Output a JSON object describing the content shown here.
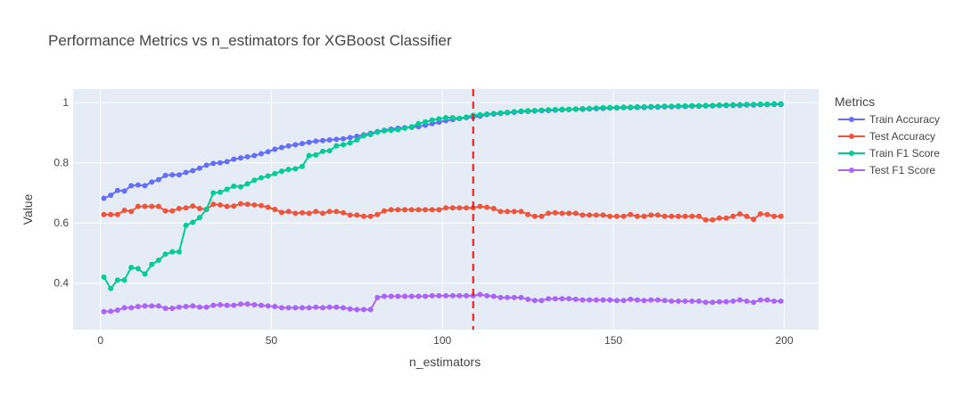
{
  "chart_data": {
    "type": "line",
    "title": "Performance Metrics vs n_estimators for XGBoost Classifier",
    "xlabel": "n_estimators",
    "ylabel": "Value",
    "xlim": [
      -8,
      210
    ],
    "ylim": [
      0.245,
      1.045
    ],
    "x_ticks": [
      0,
      50,
      100,
      150,
      200
    ],
    "x_tick_labels": [
      "0",
      "50",
      "100",
      "150",
      "200"
    ],
    "y_ticks": [
      0.4,
      0.6,
      0.8,
      1.0
    ],
    "y_tick_labels": [
      "0.4",
      "0.6",
      "0.8",
      "1"
    ],
    "grid": true,
    "legend_title": "Metrics",
    "legend_position": "right",
    "vline": {
      "x": 109,
      "color": "#EE1111",
      "dash": "dash"
    },
    "x_start": 1,
    "x_step": 2,
    "series": [
      {
        "name": "Train Accuracy",
        "color": "#636EFA",
        "values": [
          0.682,
          0.692,
          0.708,
          0.706,
          0.724,
          0.726,
          0.724,
          0.736,
          0.744,
          0.758,
          0.76,
          0.76,
          0.768,
          0.774,
          0.782,
          0.792,
          0.798,
          0.8,
          0.804,
          0.812,
          0.816,
          0.82,
          0.824,
          0.83,
          0.837,
          0.845,
          0.851,
          0.856,
          0.86,
          0.864,
          0.868,
          0.872,
          0.874,
          0.876,
          0.878,
          0.88,
          0.884,
          0.888,
          0.893,
          0.898,
          0.904,
          0.908,
          0.912,
          0.915,
          0.917,
          0.918,
          0.92,
          0.925,
          0.93,
          0.935,
          0.94,
          0.944,
          0.947,
          0.95,
          0.952,
          0.955,
          0.96,
          0.962,
          0.964,
          0.966,
          0.968,
          0.97,
          0.971,
          0.972,
          0.973,
          0.974,
          0.975,
          0.976,
          0.977,
          0.978,
          0.978,
          0.979,
          0.98,
          0.981,
          0.982,
          0.982,
          0.983,
          0.983,
          0.984,
          0.984,
          0.985,
          0.985,
          0.986,
          0.986,
          0.987,
          0.987,
          0.988,
          0.988,
          0.989,
          0.989,
          0.99,
          0.99,
          0.991,
          0.991,
          0.992,
          0.992,
          0.993,
          0.993,
          0.994,
          0.994
        ]
      },
      {
        "name": "Test Accuracy",
        "color": "#EF553B",
        "values": [
          0.628,
          0.628,
          0.628,
          0.642,
          0.638,
          0.655,
          0.655,
          0.655,
          0.655,
          0.64,
          0.64,
          0.648,
          0.65,
          0.656,
          0.648,
          0.645,
          0.662,
          0.66,
          0.655,
          0.656,
          0.664,
          0.662,
          0.66,
          0.658,
          0.652,
          0.645,
          0.635,
          0.638,
          0.632,
          0.634,
          0.632,
          0.638,
          0.632,
          0.638,
          0.638,
          0.634,
          0.626,
          0.626,
          0.622,
          0.622,
          0.628,
          0.64,
          0.644,
          0.644,
          0.644,
          0.644,
          0.644,
          0.644,
          0.644,
          0.644,
          0.65,
          0.65,
          0.65,
          0.65,
          0.65,
          0.655,
          0.652,
          0.648,
          0.638,
          0.638,
          0.638,
          0.638,
          0.628,
          0.622,
          0.622,
          0.632,
          0.634,
          0.632,
          0.632,
          0.632,
          0.626,
          0.626,
          0.626,
          0.626,
          0.622,
          0.622,
          0.622,
          0.628,
          0.622,
          0.622,
          0.626,
          0.626,
          0.622,
          0.622,
          0.622,
          0.622,
          0.622,
          0.622,
          0.61,
          0.61,
          0.616,
          0.616,
          0.622,
          0.63,
          0.622,
          0.612,
          0.63,
          0.628,
          0.622,
          0.622
        ]
      },
      {
        "name": "Train F1 Score",
        "color": "#00CC96",
        "values": [
          0.42,
          0.382,
          0.41,
          0.41,
          0.452,
          0.448,
          0.43,
          0.462,
          0.476,
          0.496,
          0.504,
          0.504,
          0.592,
          0.602,
          0.618,
          0.645,
          0.7,
          0.702,
          0.712,
          0.722,
          0.72,
          0.73,
          0.742,
          0.75,
          0.756,
          0.764,
          0.772,
          0.778,
          0.78,
          0.788,
          0.824,
          0.826,
          0.838,
          0.84,
          0.856,
          0.86,
          0.866,
          0.876,
          0.89,
          0.894,
          0.902,
          0.906,
          0.908,
          0.91,
          0.915,
          0.92,
          0.93,
          0.936,
          0.942,
          0.946,
          0.95,
          0.95,
          0.948,
          0.952,
          0.958,
          0.96,
          0.962,
          0.964,
          0.966,
          0.968,
          0.97,
          0.972,
          0.973,
          0.974,
          0.975,
          0.976,
          0.977,
          0.978,
          0.978,
          0.979,
          0.98,
          0.981,
          0.982,
          0.983,
          0.984,
          0.984,
          0.985,
          0.985,
          0.986,
          0.986,
          0.987,
          0.987,
          0.988,
          0.988,
          0.989,
          0.989,
          0.99,
          0.99,
          0.991,
          0.991,
          0.992,
          0.992,
          0.993,
          0.993,
          0.994,
          0.994,
          0.995,
          0.995,
          0.996,
          0.996
        ]
      },
      {
        "name": "Test F1 Score",
        "color": "#AB63FA",
        "values": [
          0.305,
          0.306,
          0.31,
          0.318,
          0.318,
          0.322,
          0.324,
          0.324,
          0.324,
          0.316,
          0.316,
          0.32,
          0.322,
          0.324,
          0.32,
          0.32,
          0.326,
          0.328,
          0.326,
          0.326,
          0.33,
          0.33,
          0.328,
          0.326,
          0.324,
          0.322,
          0.318,
          0.318,
          0.318,
          0.318,
          0.318,
          0.32,
          0.318,
          0.32,
          0.32,
          0.318,
          0.314,
          0.312,
          0.312,
          0.312,
          0.352,
          0.356,
          0.356,
          0.356,
          0.356,
          0.356,
          0.356,
          0.356,
          0.358,
          0.358,
          0.358,
          0.358,
          0.358,
          0.358,
          0.358,
          0.362,
          0.358,
          0.356,
          0.352,
          0.352,
          0.352,
          0.352,
          0.346,
          0.342,
          0.342,
          0.348,
          0.348,
          0.348,
          0.348,
          0.346,
          0.344,
          0.344,
          0.344,
          0.344,
          0.344,
          0.342,
          0.342,
          0.346,
          0.344,
          0.342,
          0.344,
          0.344,
          0.342,
          0.34,
          0.34,
          0.34,
          0.34,
          0.34,
          0.336,
          0.336,
          0.338,
          0.338,
          0.34,
          0.344,
          0.34,
          0.336,
          0.344,
          0.344,
          0.34,
          0.34
        ]
      }
    ]
  }
}
